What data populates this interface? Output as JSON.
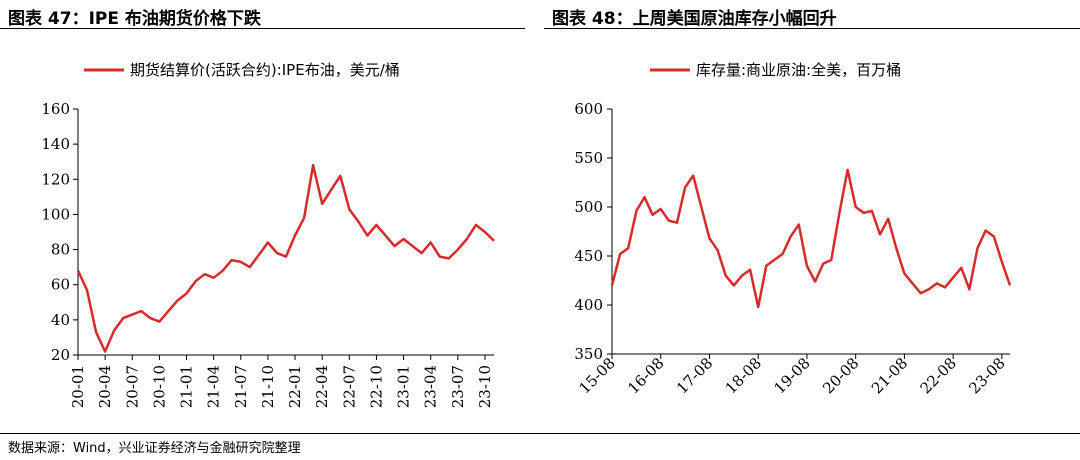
{
  "left_title": "图表 47：IPE 布油期货价格下跌",
  "right_title": "图表 48：上周美国原油库存小幅回升",
  "source_note": "数据来源：Wind，兴业证券经济与金融研究院整理",
  "colors": {
    "series": "#d62b2b",
    "axis": "#000000"
  },
  "chart_data": [
    {
      "type": "line",
      "legend": {
        "label": "期货结算价(活跃合约):IPE布油，美元/桶",
        "placement": "top-center"
      },
      "ylim": [
        20,
        160
      ],
      "yticks": [
        20,
        40,
        60,
        80,
        100,
        120,
        140,
        160
      ],
      "xticks": [
        "20-01",
        "20-04",
        "20-07",
        "20-10",
        "21-01",
        "21-04",
        "21-07",
        "21-10",
        "22-01",
        "22-04",
        "22-07",
        "22-10",
        "23-01",
        "23-04",
        "23-07",
        "23-10"
      ],
      "x_range": [
        "2020-01",
        "2023-11"
      ],
      "grid": false,
      "series": [
        {
          "x": [
            "2020-01",
            "2020-02",
            "2020-03",
            "2020-04",
            "2020-05",
            "2020-06",
            "2020-07",
            "2020-08",
            "2020-09",
            "2020-10",
            "2020-11",
            "2020-12",
            "2021-01",
            "2021-02",
            "2021-03",
            "2021-04",
            "2021-05",
            "2021-06",
            "2021-07",
            "2021-08",
            "2021-09",
            "2021-10",
            "2021-11",
            "2021-12",
            "2022-01",
            "2022-02",
            "2022-03",
            "2022-04",
            "2022-05",
            "2022-06",
            "2022-07",
            "2022-08",
            "2022-09",
            "2022-10",
            "2022-11",
            "2022-12",
            "2023-01",
            "2023-02",
            "2023-03",
            "2023-04",
            "2023-05",
            "2023-06",
            "2023-07",
            "2023-08",
            "2023-09",
            "2023-10",
            "2023-11"
          ],
          "values": [
            68,
            57,
            33,
            22,
            34,
            41,
            43,
            45,
            41,
            39,
            45,
            51,
            55,
            62,
            66,
            64,
            68,
            74,
            73,
            70,
            77,
            84,
            78,
            76,
            88,
            98,
            128,
            106,
            114,
            122,
            103,
            96,
            88,
            94,
            88,
            82,
            86,
            82,
            78,
            84,
            76,
            75,
            80,
            86,
            94,
            90,
            85
          ]
        }
      ]
    },
    {
      "type": "line",
      "legend": {
        "label": "库存量:商业原油:全美，百万桶",
        "placement": "top-center"
      },
      "ylim": [
        350,
        600
      ],
      "yticks": [
        350,
        400,
        450,
        500,
        550,
        600
      ],
      "xticks": [
        "15-08",
        "16-08",
        "17-08",
        "18-08",
        "19-08",
        "20-08",
        "21-08",
        "22-08",
        "23-08"
      ],
      "x_range": [
        "2015-08",
        "2023-10"
      ],
      "grid": false,
      "series": [
        {
          "x": [
            "2015-08",
            "2015-10",
            "2015-12",
            "2016-02",
            "2016-04",
            "2016-06",
            "2016-08",
            "2016-10",
            "2016-12",
            "2017-02",
            "2017-04",
            "2017-06",
            "2017-08",
            "2017-10",
            "2017-12",
            "2018-02",
            "2018-04",
            "2018-06",
            "2018-08",
            "2018-10",
            "2018-12",
            "2019-02",
            "2019-04",
            "2019-06",
            "2019-08",
            "2019-10",
            "2019-12",
            "2020-02",
            "2020-04",
            "2020-06",
            "2020-08",
            "2020-10",
            "2020-12",
            "2021-02",
            "2021-04",
            "2021-06",
            "2021-08",
            "2021-10",
            "2021-12",
            "2022-02",
            "2022-04",
            "2022-06",
            "2022-08",
            "2022-10",
            "2022-12",
            "2023-02",
            "2023-04",
            "2023-06",
            "2023-08",
            "2023-10"
          ],
          "values": [
            420,
            452,
            458,
            496,
            510,
            492,
            498,
            486,
            484,
            520,
            532,
            500,
            468,
            456,
            430,
            420,
            430,
            436,
            398,
            440,
            446,
            452,
            470,
            482,
            440,
            424,
            442,
            446,
            494,
            538,
            500,
            494,
            496,
            472,
            488,
            458,
            432,
            422,
            412,
            416,
            422,
            418,
            428,
            438,
            416,
            458,
            476,
            470,
            444,
            420
          ]
        }
      ]
    }
  ]
}
